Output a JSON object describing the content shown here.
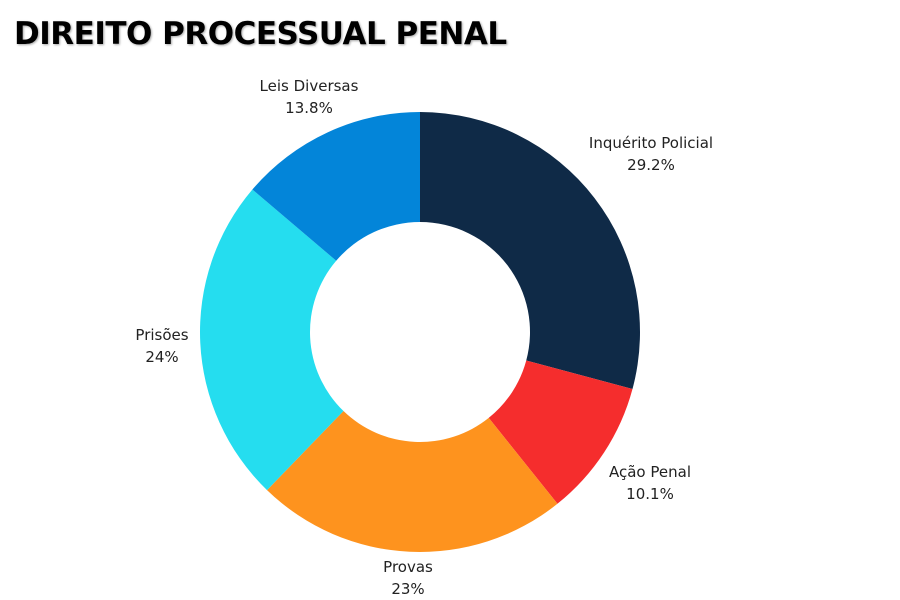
{
  "chart_data": {
    "type": "pie",
    "title": "DIREITO PROCESSUAL PENAL",
    "donut": true,
    "start_angle": "12 o'clock",
    "direction": "clockwise",
    "slices": [
      {
        "label": "Inquérito Policial",
        "value": 29.2,
        "value_label": "29.2%",
        "color": "#0F2A47"
      },
      {
        "label": "Ação Penal",
        "value": 10.1,
        "value_label": "10.1%",
        "color": "#F52D2D"
      },
      {
        "label": "Provas",
        "value": 23,
        "value_label": "23%",
        "color": "#FE931E"
      },
      {
        "label": "Prisões",
        "value": 24,
        "value_label": "24%",
        "color": "#25DDEF"
      },
      {
        "label": "Leis Diversas",
        "value": 13.8,
        "value_label": "13.8%",
        "color": "#0385D9"
      }
    ]
  }
}
